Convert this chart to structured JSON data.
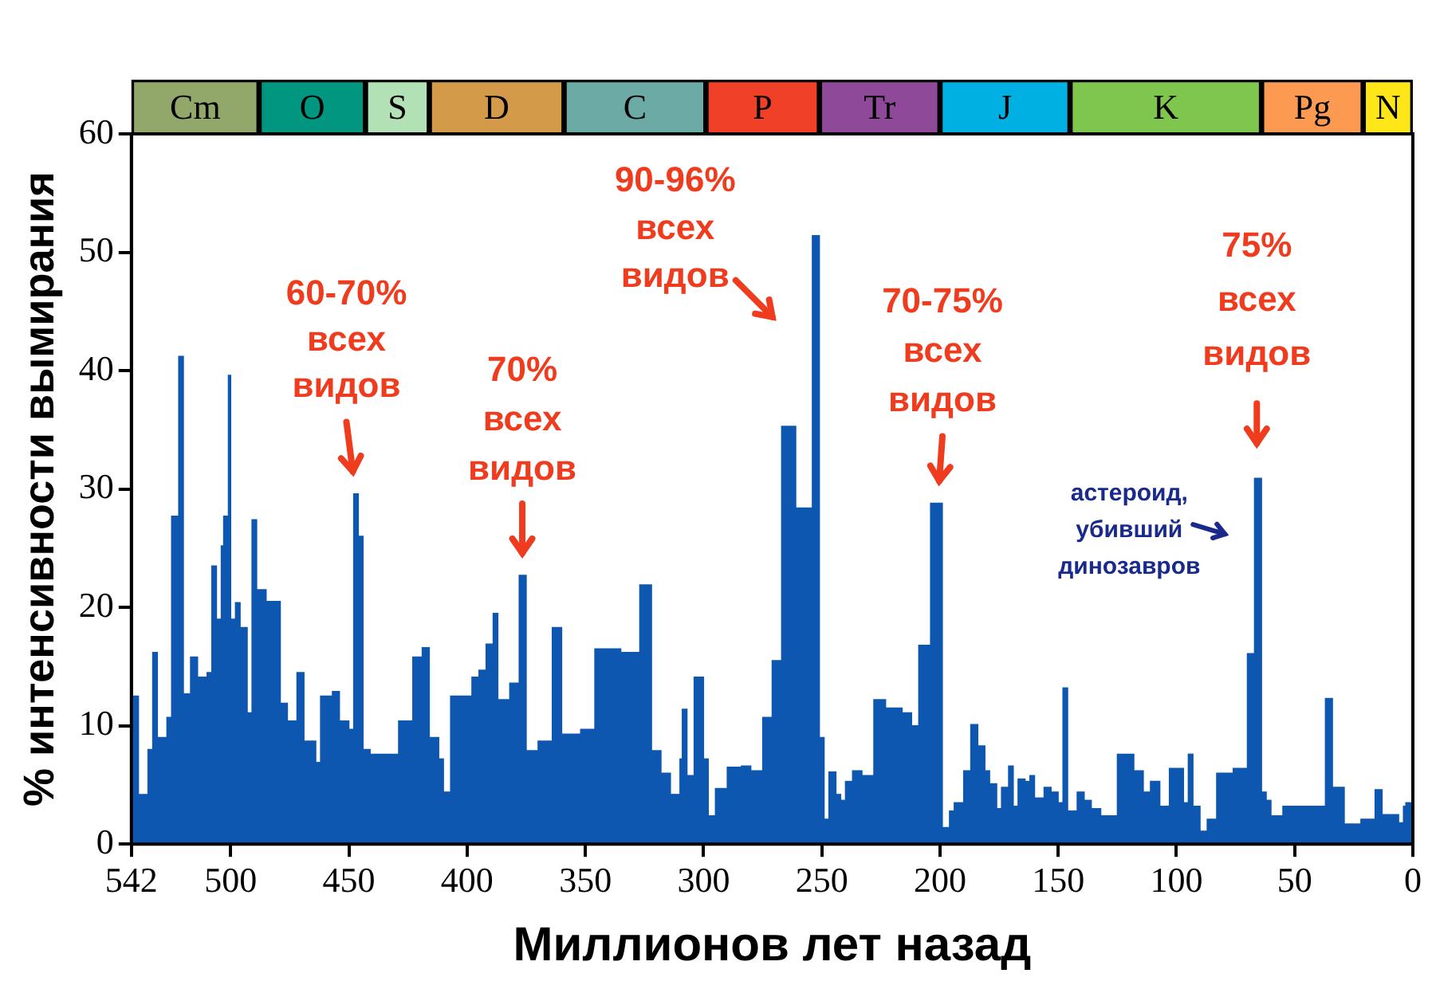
{
  "chart_data": [
    {
      "type": "bar",
      "orientation": "horizontal",
      "stacked": true,
      "categories": [
        null
      ],
      "xlim": [
        542,
        0
      ],
      "tick_labels": false,
      "series": [
        {
          "name": "N",
          "color": "#ffe619",
          "values": [
            21
          ]
        },
        {
          "name": "Pg",
          "color": "#fd9a52",
          "values": [
            43
          ]
        },
        {
          "name": "K",
          "color": "#7fc64e",
          "values": [
            81
          ]
        },
        {
          "name": "J",
          "color": "#00b0e3",
          "values": [
            55
          ]
        },
        {
          "name": "Tr",
          "color": "#8e4a98",
          "values": [
            51
          ]
        },
        {
          "name": "P",
          "color": "#f04028",
          "values": [
            48
          ]
        },
        {
          "name": "C",
          "color": "#6baaa5",
          "values": [
            60
          ]
        },
        {
          "name": "D",
          "color": "#d39a4a",
          "values": [
            57
          ]
        },
        {
          "name": "S",
          "color": "#b3e1b6",
          "values": [
            27
          ]
        },
        {
          "name": "O",
          "color": "#00967f",
          "values": [
            45
          ]
        },
        {
          "name": "Cm",
          "color": "#92a86a",
          "values": [
            54
          ]
        }
      ]
    },
    {
      "type": "histogram",
      "xlabel": "Миллионов лет назад",
      "ylabel": "% интенсивности вымирания",
      "color": "#0e57b0",
      "bins": [
        542,
        539,
        535,
        533,
        531,
        527,
        525,
        522,
        520,
        517,
        514,
        510,
        508,
        506,
        504,
        503,
        501,
        500,
        498,
        496,
        493,
        491,
        489,
        485,
        479,
        476,
        472,
        469,
        464,
        462,
        457,
        454,
        450,
        448,
        446,
        444,
        441,
        429,
        423,
        419,
        416,
        412,
        410,
        407,
        398,
        395,
        392,
        389,
        387,
        382,
        378,
        375,
        370,
        364,
        360,
        352,
        346,
        335,
        327,
        322,
        318,
        314,
        310,
        309,
        307,
        304,
        300,
        298,
        295,
        290,
        284,
        280,
        275,
        271,
        267,
        261,
        254,
        251,
        249,
        247,
        244,
        242,
        240,
        237,
        233,
        228,
        223,
        216,
        212,
        209,
        204,
        199,
        196,
        194,
        190,
        187,
        184,
        181,
        179,
        176,
        174,
        171,
        169,
        167,
        164,
        162,
        160,
        156,
        153,
        150,
        148,
        146,
        142,
        139,
        136,
        132,
        125,
        118,
        114,
        111,
        107,
        103,
        97,
        95,
        93,
        90,
        87,
        83,
        76,
        70,
        67,
        64,
        62,
        60,
        55,
        37,
        34,
        29,
        22,
        16,
        13,
        6,
        4,
        3,
        0
      ],
      "values": [
        12.5,
        4.2,
        8.0,
        16.2,
        9.0,
        10.7,
        27.7,
        41.2,
        12.7,
        15.8,
        14.1,
        14.5,
        23.5,
        19.0,
        25.2,
        27.7,
        39.6,
        19.0,
        20.4,
        18.3,
        11.1,
        27.4,
        21.5,
        20.5,
        11.9,
        10.4,
        14.5,
        8.7,
        6.9,
        12.5,
        12.9,
        10.4,
        9.7,
        29.6,
        26.0,
        8.0,
        7.6,
        10.4,
        15.8,
        16.6,
        9.0,
        7.2,
        4.4,
        12.5,
        14.1,
        14.7,
        16.9,
        19.5,
        12.2,
        13.6,
        22.7,
        7.9,
        8.7,
        18.3,
        9.3,
        9.7,
        16.5,
        16.2,
        21.9,
        7.9,
        6.0,
        4.2,
        7.2,
        11.4,
        5.8,
        14.1,
        7.2,
        2.4,
        4.7,
        6.5,
        6.6,
        6.2,
        10.7,
        15.5,
        35.3,
        28.4,
        51.4,
        9.0,
        2.1,
        6.1,
        4.2,
        3.7,
        5.3,
        6.2,
        5.8,
        12.2,
        11.5,
        11.1,
        10.0,
        16.8,
        28.8,
        1.4,
        2.8,
        3.5,
        6.2,
        10.1,
        8.3,
        6.2,
        5.1,
        3.0,
        4.8,
        6.6,
        3.2,
        5.5,
        5.3,
        5.8,
        3.9,
        4.8,
        4.4,
        3.5,
        13.2,
        2.8,
        4.4,
        3.7,
        3.0,
        2.4,
        7.6,
        6.2,
        4.4,
        5.3,
        3.2,
        6.4,
        3.5,
        7.6,
        3.2,
        1.1,
        2.1,
        6.0,
        6.4,
        16.1,
        30.9,
        4.4,
        3.7,
        2.4,
        3.2,
        12.3,
        4.8,
        1.7,
        2.1,
        4.6,
        2.5,
        1.8,
        3.2,
        3.5
      ],
      "xlim": [
        542,
        0
      ],
      "xticks": [
        542,
        500,
        450,
        400,
        350,
        300,
        250,
        200,
        150,
        100,
        50,
        0
      ],
      "ylim": [
        0,
        60
      ],
      "yticks": [
        0,
        10,
        20,
        30,
        40,
        50,
        60
      ],
      "annotations": [
        {
          "text": "60-70%\nвсех\nвидов",
          "x": 447,
          "y": 29.6
        },
        {
          "text": "70%\nвсех\nвидов",
          "x": 376,
          "y": 22.7
        },
        {
          "text": "90-96%\nвсех\nвидов",
          "x": 252,
          "y": 51.4
        },
        {
          "text": "70-75%\nвсех\nвидов",
          "x": 201,
          "y": 28.8
        },
        {
          "text": "75%\nвсех\nвидов",
          "x": 66,
          "y": 30.9
        },
        {
          "text": "астероид,\nубивший\nдинозавров",
          "x": 66,
          "y": 27
        }
      ]
    }
  ]
}
